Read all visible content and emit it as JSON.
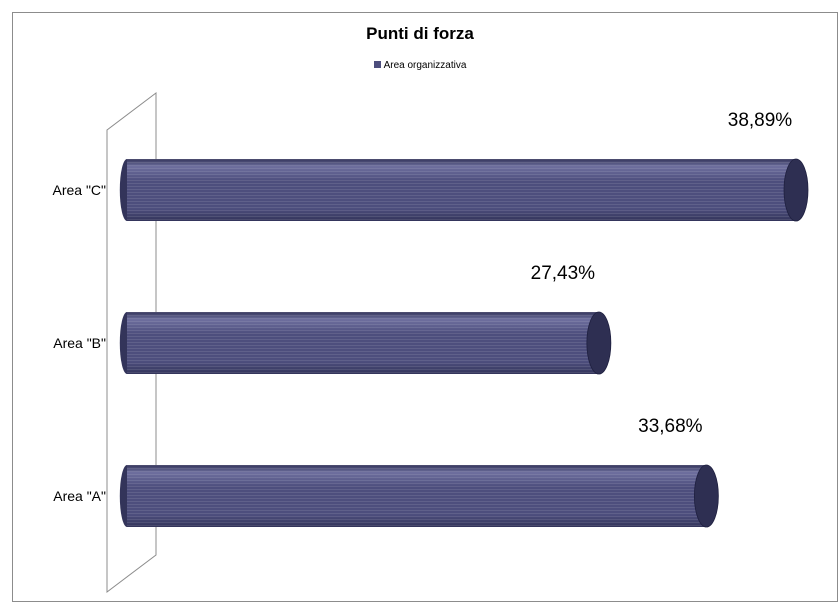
{
  "chart_data": {
    "type": "bar",
    "orientation": "horizontal",
    "style": "3d-cylinder",
    "title": "Punti di forza",
    "categories": [
      "Area \"A\"",
      "Area \"B\"",
      "Area \"C\""
    ],
    "series": [
      {
        "name": "Area organizzativa",
        "values": [
          33.68,
          27.43,
          38.89
        ],
        "labels": [
          "33,68%",
          "27,43%",
          "38,89%"
        ]
      }
    ],
    "xlim": [
      0,
      40
    ],
    "axis_labels_visible": false,
    "grid": false,
    "legend": "top-center",
    "colors": {
      "bar_main": "#4d4e7d",
      "bar_light": "#6e6f9e",
      "bar_dark": "#33345a",
      "cap": "#2e2f52",
      "frame": "#8c8c8c"
    }
  }
}
